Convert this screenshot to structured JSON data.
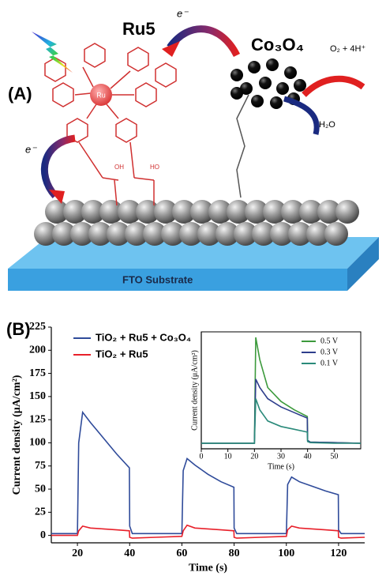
{
  "panel_a": {
    "label": "(A)",
    "dye": "Ru5",
    "catalyst": "Co₃O₄",
    "electron": "e⁻",
    "product": "O₂ + 4H⁺",
    "reactant": "H₂O",
    "metal": "Ru",
    "hydroxyl_left": "OH",
    "hydroxyl_right": "HO",
    "substrate": "FTO Substrate"
  },
  "panel_b": {
    "label": "(B)"
  },
  "chart_data": [
    {
      "type": "line",
      "xlabel": "Time (s)",
      "ylabel": "Current density (μA/cm²)",
      "xlim": [
        10,
        130
      ],
      "xticks": [
        20,
        40,
        60,
        80,
        100,
        120
      ],
      "ylim": [
        -8,
        225
      ],
      "yticks": [
        0,
        25,
        50,
        75,
        100,
        125,
        150,
        175,
        200,
        225
      ],
      "legend": "upper left",
      "x": [
        10,
        20,
        20.5,
        22,
        25,
        30,
        35,
        39.9,
        40,
        41,
        50,
        60,
        60.5,
        62,
        65,
        70,
        75,
        79.9,
        80,
        81,
        90,
        100,
        100.5,
        102,
        105,
        110,
        115,
        119.9,
        120,
        121,
        130
      ],
      "series": [
        {
          "name": "TiO₂ + Ru5 + Co₃O₄",
          "color": "#2f4b9a",
          "values": [
            2,
            2,
            100,
            133,
            122,
            105,
            88,
            73,
            10,
            2,
            2,
            2,
            70,
            83,
            76,
            66,
            58,
            52,
            8,
            2,
            2,
            2,
            55,
            63,
            58,
            53,
            48,
            44,
            6,
            2,
            2
          ]
        },
        {
          "name": "TiO₂ + Ru5",
          "color": "#e8202a",
          "values": [
            0,
            0,
            5,
            10,
            8,
            7,
            6,
            5,
            -2,
            -3,
            -2,
            -1,
            5,
            11,
            8,
            7,
            6,
            5,
            -2,
            -3,
            -2,
            -1,
            6,
            10,
            8,
            7,
            6,
            5,
            -2,
            -3,
            -2
          ]
        }
      ]
    },
    {
      "type": "line",
      "xlabel": "Time (s)",
      "ylabel": "Current density (μA/cm²)",
      "xlim": [
        0,
        60
      ],
      "xticks": [
        0,
        10,
        20,
        30,
        40,
        50
      ],
      "ylim": [
        -10,
        200
      ],
      "legend": "upper right",
      "x": [
        0,
        20,
        20.5,
        22,
        25,
        30,
        35,
        39.9,
        40,
        41,
        50,
        60
      ],
      "series": [
        {
          "name": "0.5 V",
          "color": "#3c9a3c",
          "values": [
            0,
            0,
            190,
            150,
            100,
            75,
            60,
            48,
            5,
            2,
            1,
            0
          ]
        },
        {
          "name": "0.3 V",
          "color": "#2e3e8c",
          "values": [
            0,
            0,
            115,
            100,
            80,
            65,
            55,
            45,
            5,
            2,
            1,
            0
          ]
        },
        {
          "name": "0.1 V",
          "color": "#2a8a7a",
          "values": [
            0,
            0,
            80,
            60,
            40,
            30,
            25,
            20,
            3,
            1,
            0,
            0
          ]
        }
      ]
    }
  ]
}
